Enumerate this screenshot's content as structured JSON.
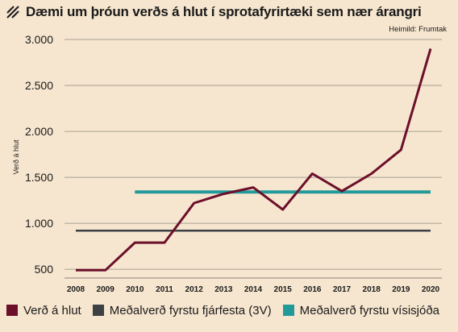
{
  "title": "Dæmi um þróun verðs á hlut í sprotafyrirtæki sem nær árangri",
  "source": "Heimild: Frumtak",
  "chart_data": {
    "type": "line",
    "ylabel": "Verð á hlut",
    "xlabel": "",
    "x": [
      2008,
      2009,
      2010,
      2011,
      2012,
      2013,
      2014,
      2015,
      2016,
      2017,
      2018,
      2019,
      2020
    ],
    "x_tick_labels": [
      "2008",
      "2009",
      "2010",
      "2011",
      "2012",
      "2013",
      "2014",
      "2015",
      "2016",
      "2017",
      "2018",
      "2019",
      "2020"
    ],
    "y_ticks": [
      500,
      1000,
      1500,
      2000,
      2500,
      3000
    ],
    "y_tick_labels": [
      "500",
      "1.000",
      "1.500",
      "2.000",
      "2.500",
      "3.000"
    ],
    "ylim": [
      500,
      3000
    ],
    "grid": "horizontal",
    "legend_position": "bottom",
    "series": [
      {
        "name": "Verð á hlut",
        "color": "#6b0f2a",
        "x": [
          2008,
          2009,
          2010,
          2011,
          2012,
          2013,
          2014,
          2015,
          2016,
          2017,
          2018,
          2019,
          2020
        ],
        "values": [
          490,
          490,
          790,
          790,
          1220,
          1320,
          1390,
          1150,
          1540,
          1350,
          1540,
          1800,
          2900
        ]
      },
      {
        "name": "Meðalverð fyrstu fjárfesta (3V)",
        "color": "#3d4045",
        "x": [
          2008,
          2020
        ],
        "values": [
          920,
          920
        ]
      },
      {
        "name": "Meðalverð fyrstu vísisjóða",
        "color": "#239a9a",
        "x": [
          2010,
          2020
        ],
        "values": [
          1340,
          1340
        ]
      }
    ]
  }
}
